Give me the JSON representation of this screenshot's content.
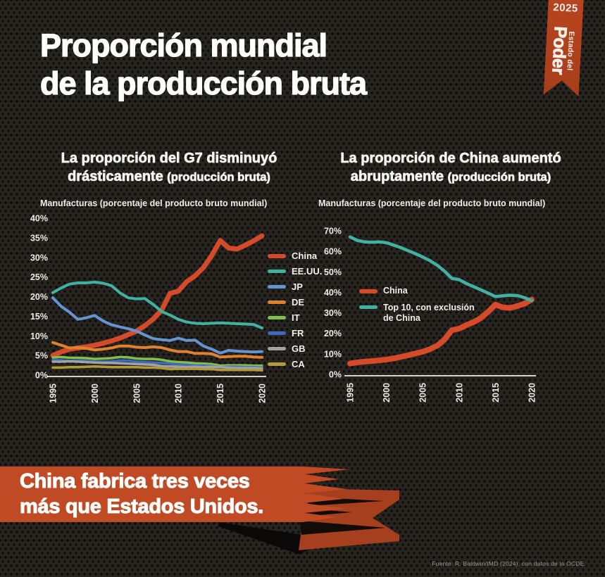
{
  "header": {
    "title_line1": "Proporción mundial",
    "title_line2": "de la producción bruta"
  },
  "ribbon": {
    "year": "2025",
    "series_small": "Estado del",
    "series_big": "Poder"
  },
  "chart_data": [
    {
      "type": "line",
      "title": "La proporción del G7 disminuyó drásticamente",
      "title_paren": "(producción bruta)",
      "subtitle": "Manufacturas (porcentaje del producto bruto mundial)",
      "x": [
        1995,
        1996,
        1997,
        1998,
        1999,
        2000,
        2001,
        2002,
        2003,
        2004,
        2005,
        2006,
        2007,
        2008,
        2009,
        2010,
        2011,
        2012,
        2013,
        2014,
        2015,
        2016,
        2017,
        2018,
        2019,
        2020
      ],
      "xticks": [
        1995,
        2000,
        2005,
        2010,
        2015,
        2020
      ],
      "ylim": [
        0,
        40
      ],
      "yticks": [
        40,
        35,
        30,
        25,
        20,
        15,
        10,
        5,
        0
      ],
      "ytick_suffix": "%",
      "grid": false,
      "legend_position": "right",
      "series": [
        {
          "name": "China",
          "color": "#d54a28",
          "width": 7,
          "values": [
            5.0,
            5.9,
            6.6,
            6.9,
            7.2,
            7.6,
            8.1,
            8.7,
            9.4,
            10.3,
            11.2,
            12.6,
            14.3,
            16.5,
            20.8,
            21.4,
            23.8,
            25.3,
            27.4,
            30.5,
            34.3,
            32.4,
            32.1,
            33.1,
            34.2,
            35.5
          ]
        },
        {
          "name": "EE.UU.",
          "color": "#41b2a2",
          "width": 4,
          "values": [
            21.0,
            22.2,
            23.2,
            23.5,
            23.5,
            23.7,
            23.4,
            22.8,
            21.0,
            19.7,
            19.4,
            19.5,
            18.0,
            16.2,
            15.3,
            14.2,
            13.5,
            13.2,
            13.1,
            13.2,
            13.3,
            13.2,
            13.1,
            13.0,
            12.9,
            12.0
          ]
        },
        {
          "name": "JP",
          "color": "#6494d2",
          "width": 4,
          "values": [
            19.7,
            17.5,
            16.0,
            14.2,
            14.6,
            15.2,
            13.8,
            12.8,
            12.3,
            11.8,
            11.2,
            10.2,
            9.3,
            9.0,
            8.8,
            9.4,
            8.8,
            8.9,
            7.4,
            6.6,
            5.6,
            6.3,
            6.1,
            6.0,
            5.9,
            6.0
          ]
        },
        {
          "name": "DE",
          "color": "#e0812f",
          "width": 4,
          "values": [
            8.3,
            7.6,
            6.9,
            7.0,
            6.8,
            6.4,
            6.6,
            6.9,
            7.4,
            7.4,
            7.1,
            7.0,
            7.2,
            7.0,
            6.4,
            6.0,
            6.0,
            5.5,
            5.5,
            5.4,
            4.6,
            4.7,
            4.8,
            4.8,
            4.6,
            4.5
          ]
        },
        {
          "name": "IT",
          "color": "#7fbf4b",
          "width": 3.5,
          "values": [
            4.5,
            4.6,
            4.4,
            4.4,
            4.3,
            4.1,
            4.2,
            4.3,
            4.6,
            4.5,
            4.2,
            4.1,
            4.1,
            3.9,
            3.5,
            3.3,
            3.2,
            3.0,
            2.9,
            2.8,
            2.4,
            2.5,
            2.5,
            2.5,
            2.4,
            2.4
          ]
        },
        {
          "name": "FR",
          "color": "#4069bd",
          "width": 3.5,
          "values": [
            3.9,
            3.8,
            3.6,
            3.7,
            3.6,
            3.4,
            3.4,
            3.5,
            3.7,
            3.7,
            3.4,
            3.3,
            3.2,
            3.1,
            2.9,
            2.6,
            2.6,
            2.4,
            2.4,
            2.3,
            2.0,
            2.1,
            2.1,
            2.0,
            2.0,
            1.9
          ]
        },
        {
          "name": "GB",
          "color": "#a2a2a2",
          "width": 3.5,
          "values": [
            3.4,
            3.4,
            3.5,
            3.4,
            3.3,
            3.2,
            3.1,
            3.1,
            3.0,
            2.9,
            2.8,
            2.7,
            2.6,
            2.3,
            2.2,
            2.1,
            2.0,
            2.1,
            2.0,
            2.1,
            2.0,
            1.9,
            1.8,
            1.8,
            1.8,
            1.7
          ]
        },
        {
          "name": "CA",
          "color": "#af9a3d",
          "width": 3.5,
          "values": [
            1.9,
            1.9,
            2.0,
            2.0,
            2.1,
            2.2,
            2.1,
            2.0,
            2.0,
            2.0,
            2.0,
            1.9,
            1.9,
            1.8,
            1.5,
            1.6,
            1.6,
            1.6,
            1.5,
            1.5,
            1.3,
            1.3,
            1.3,
            1.3,
            1.3,
            1.2
          ]
        }
      ]
    },
    {
      "type": "line",
      "title": "La proporción de China aumentó abruptamente",
      "title_paren": "(producción bruta)",
      "subtitle": "Manufacturas (porcentaje del producto bruto mundial)",
      "x": [
        1995,
        1996,
        1997,
        1998,
        1999,
        2000,
        2001,
        2002,
        2003,
        2004,
        2005,
        2006,
        2007,
        2008,
        2009,
        2010,
        2011,
        2012,
        2013,
        2014,
        2015,
        2016,
        2017,
        2018,
        2019,
        2020
      ],
      "xticks": [
        1995,
        2000,
        2005,
        2010,
        2015,
        2020
      ],
      "ylim": [
        0,
        70
      ],
      "yticks": [
        70,
        60,
        50,
        40,
        30,
        20,
        10,
        0
      ],
      "ytick_suffix": "%",
      "grid": false,
      "legend_position": "inside-left",
      "series": [
        {
          "name": "China",
          "color": "#d54a28",
          "width": 8,
          "values": [
            5.3,
            5.8,
            6.2,
            6.5,
            6.8,
            7.2,
            7.8,
            8.5,
            9.3,
            10.2,
            11.0,
            12.3,
            14.0,
            17.0,
            21.5,
            22.3,
            24.0,
            25.5,
            27.5,
            30.5,
            34.0,
            32.7,
            32.4,
            33.3,
            34.5,
            36.5
          ]
        },
        {
          "name": "Top 10, con exclusión de China",
          "color": "#41b2a2",
          "width": 4.5,
          "values": [
            67.0,
            65.3,
            64.6,
            64.4,
            64.6,
            64.2,
            63.0,
            61.8,
            60.3,
            58.8,
            57.2,
            55.4,
            53.2,
            50.3,
            46.8,
            46.2,
            44.3,
            42.8,
            41.2,
            39.6,
            37.9,
            38.3,
            38.6,
            38.4,
            37.4,
            35.9
          ]
        }
      ]
    }
  ],
  "banner": {
    "line1": "China fabrica tres veces",
    "line2": "más que Estados Unidos."
  },
  "footer": {
    "source": "Fuente: R. Baldwin/IMD (2024), con datos de la OCDE."
  },
  "colors": {
    "background": "#282420",
    "accent_red": "#d54a28",
    "accent_teal": "#41b2a2",
    "banner_red": "#bf4a23",
    "ribbon_red": "#b8451f",
    "text": "#f5f3ef"
  }
}
